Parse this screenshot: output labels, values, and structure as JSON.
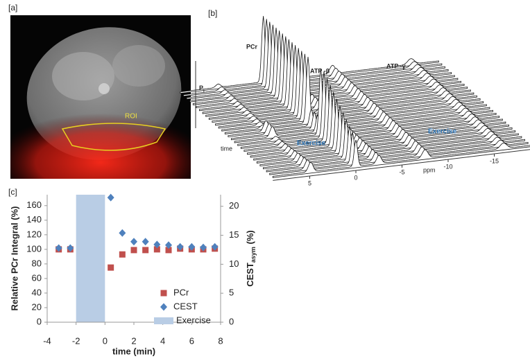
{
  "panel_a": {
    "label": "[a]",
    "roi_label": "ROI"
  },
  "panel_b": {
    "label": "[b]",
    "peak_labels": [
      "PCr",
      "ATP -β",
      "ATP -γ"
    ],
    "pi_label": {
      "text": "P",
      "sub": "i"
    },
    "time_label": "time",
    "x_label": "ppm",
    "exercise_labels": [
      "Exercise",
      "Exercise"
    ],
    "xticks": [
      5,
      0,
      -5,
      -10,
      -15
    ]
  },
  "chart_data": {
    "type": "scatter",
    "label": "[c]",
    "x_label": "time (min)",
    "y_label": "Relative PCr Integral (%)",
    "y2_label": {
      "text": "CEST",
      "sub": "asym",
      "suffix": " (%)"
    },
    "x": [
      -3.2,
      -2.4,
      0.4,
      1.2,
      2.0,
      2.8,
      3.6,
      4.4,
      5.2,
      6.0,
      6.8,
      7.6
    ],
    "series": [
      {
        "name": "PCr",
        "color": "#c0504d",
        "marker": "square",
        "values": [
          100,
          100,
          75,
          93,
          99,
          99,
          100,
          99,
          101,
          100,
          100,
          101
        ]
      },
      {
        "name": "CEST",
        "color": "#4f81bd",
        "marker": "diamond",
        "axis": "y2",
        "values": [
          12.8,
          12.8,
          21.5,
          15.4,
          13.9,
          13.9,
          13.4,
          13.3,
          13.0,
          13.0,
          12.9,
          13.0
        ]
      }
    ],
    "shade": {
      "name": "Exercise",
      "xrange": [
        -2,
        0
      ],
      "color": "#b9cde5"
    },
    "xlim": [
      -4,
      8
    ],
    "xticks": [
      -4,
      -2,
      0,
      2,
      4,
      6,
      8
    ],
    "ylim": [
      0,
      175
    ],
    "yticks": [
      0,
      20,
      40,
      60,
      80,
      100,
      120,
      140,
      160
    ],
    "y2lim": [
      0,
      22
    ],
    "y2ticks": [
      0,
      5,
      10,
      15,
      20
    ],
    "legend": "bottom-right",
    "grid": false
  }
}
